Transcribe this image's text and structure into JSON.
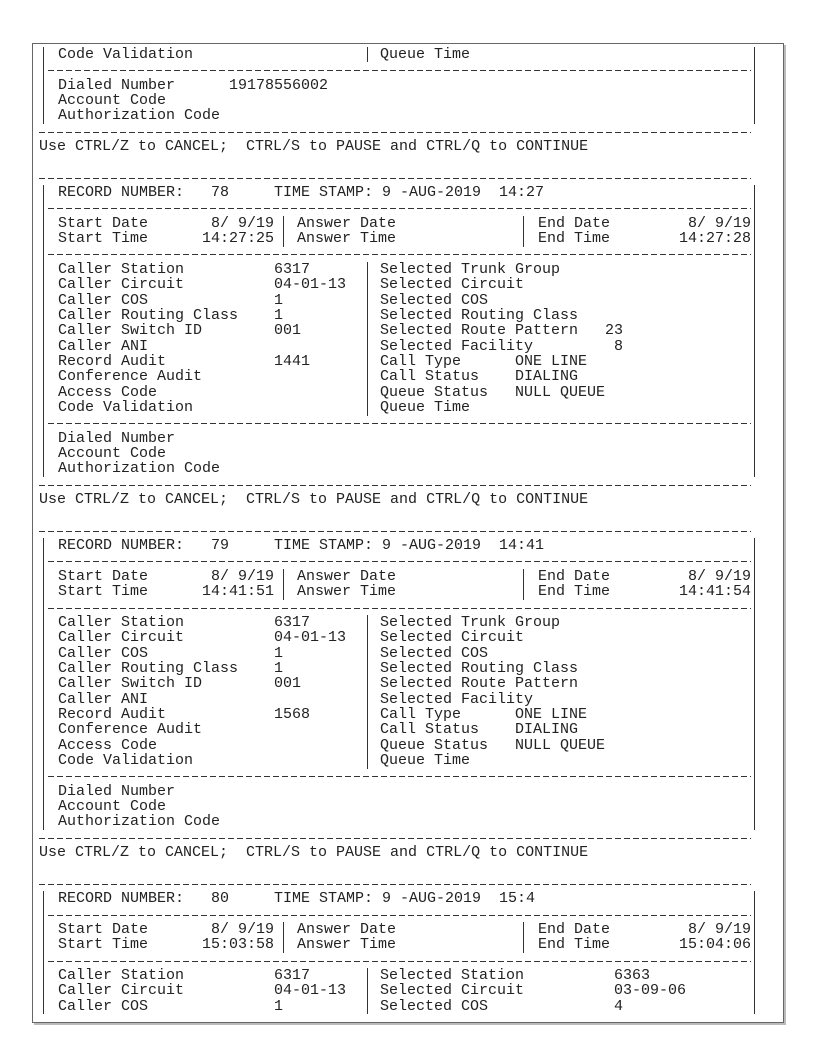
{
  "partial_record": {
    "code_validation_label": "Code Validation",
    "queue_time_label": "Queue Time",
    "dialed_number_label": "Dialed Number",
    "dialed_number": "19178556002",
    "account_code_label": "Account Code",
    "authorization_code_label": "Authorization Code"
  },
  "continue_prompt": "Use CTRL/Z to CANCEL;  CTRL/S to PAUSE and CTRL/Q to CONTINUE",
  "labels": {
    "record_number": "RECORD NUMBER:",
    "time_stamp": "TIME STAMP:",
    "start_date": "Start Date",
    "start_time": "Start Time",
    "answer_date": "Answer Date",
    "answer_time": "Answer Time",
    "end_date": "End Date",
    "end_time": "End Time"
  },
  "records": [
    {
      "record_number": "78",
      "time_stamp": "9 -AUG-2019  14:27",
      "start_date": "8/ 9/19",
      "start_time": "14:27:25",
      "end_date": "8/ 9/19",
      "end_time": "14:27:28",
      "caller": [
        {
          "label": "Caller Station",
          "value": "6317"
        },
        {
          "label": "Caller Circuit",
          "value": "04-01-13"
        },
        {
          "label": "Caller COS",
          "value": "1"
        },
        {
          "label": "Caller Routing Class",
          "value": "1"
        },
        {
          "label": "Caller Switch ID",
          "value": "001"
        },
        {
          "label": "Caller ANI",
          "value": ""
        },
        {
          "label": "Record Audit",
          "value": "1441"
        },
        {
          "label": "Conference Audit",
          "value": ""
        },
        {
          "label": "Access Code",
          "value": ""
        },
        {
          "label": "Code Validation",
          "value": ""
        }
      ],
      "selected": [
        {
          "label": "Selected Trunk Group",
          "value": ""
        },
        {
          "label": "Selected Circuit",
          "value": ""
        },
        {
          "label": "Selected COS",
          "value": ""
        },
        {
          "label": "Selected Routing Class",
          "value": ""
        },
        {
          "label": "Selected Route Pattern",
          "value": "23"
        },
        {
          "label": "Selected Facility",
          "value": "8"
        },
        {
          "label": "Call Type",
          "value": "ONE LINE"
        },
        {
          "label": "Call Status",
          "value": "DIALING"
        },
        {
          "label": "Queue Status",
          "value": "NULL QUEUE"
        },
        {
          "label": "Queue Time",
          "value": ""
        }
      ],
      "dialing": [
        {
          "label": "Dialed Number",
          "value": ""
        },
        {
          "label": "Account Code",
          "value": ""
        },
        {
          "label": "Authorization Code",
          "value": ""
        }
      ]
    },
    {
      "record_number": "79",
      "time_stamp": "9 -AUG-2019  14:41",
      "start_date": "8/ 9/19",
      "start_time": "14:41:51",
      "end_date": "8/ 9/19",
      "end_time": "14:41:54",
      "caller": [
        {
          "label": "Caller Station",
          "value": "6317"
        },
        {
          "label": "Caller Circuit",
          "value": "04-01-13"
        },
        {
          "label": "Caller COS",
          "value": "1"
        },
        {
          "label": "Caller Routing Class",
          "value": "1"
        },
        {
          "label": "Caller Switch ID",
          "value": "001"
        },
        {
          "label": "Caller ANI",
          "value": ""
        },
        {
          "label": "Record Audit",
          "value": "1568"
        },
        {
          "label": "Conference Audit",
          "value": ""
        },
        {
          "label": "Access Code",
          "value": ""
        },
        {
          "label": "Code Validation",
          "value": ""
        }
      ],
      "selected": [
        {
          "label": "Selected Trunk Group",
          "value": ""
        },
        {
          "label": "Selected Circuit",
          "value": ""
        },
        {
          "label": "Selected COS",
          "value": ""
        },
        {
          "label": "Selected Routing Class",
          "value": ""
        },
        {
          "label": "Selected Route Pattern",
          "value": ""
        },
        {
          "label": "Selected Facility",
          "value": ""
        },
        {
          "label": "Call Type",
          "value": "ONE LINE"
        },
        {
          "label": "Call Status",
          "value": "DIALING"
        },
        {
          "label": "Queue Status",
          "value": "NULL QUEUE"
        },
        {
          "label": "Queue Time",
          "value": ""
        }
      ],
      "dialing": [
        {
          "label": "Dialed Number",
          "value": ""
        },
        {
          "label": "Account Code",
          "value": ""
        },
        {
          "label": "Authorization Code",
          "value": ""
        }
      ]
    },
    {
      "record_number": "80",
      "time_stamp": "9 -AUG-2019  15:4",
      "start_date": "8/ 9/19",
      "start_time": "15:03:58",
      "end_date": "8/ 9/19",
      "end_time": "15:04:06",
      "caller": [
        {
          "label": "Caller Station",
          "value": "6317"
        },
        {
          "label": "Caller Circuit",
          "value": "04-01-13"
        },
        {
          "label": "Caller COS",
          "value": "1"
        }
      ],
      "selected": [
        {
          "label": "Selected Station",
          "value": "6363"
        },
        {
          "label": "Selected Circuit",
          "value": "03-09-06"
        },
        {
          "label": "Selected COS",
          "value": "4"
        }
      ],
      "dialing": []
    }
  ]
}
